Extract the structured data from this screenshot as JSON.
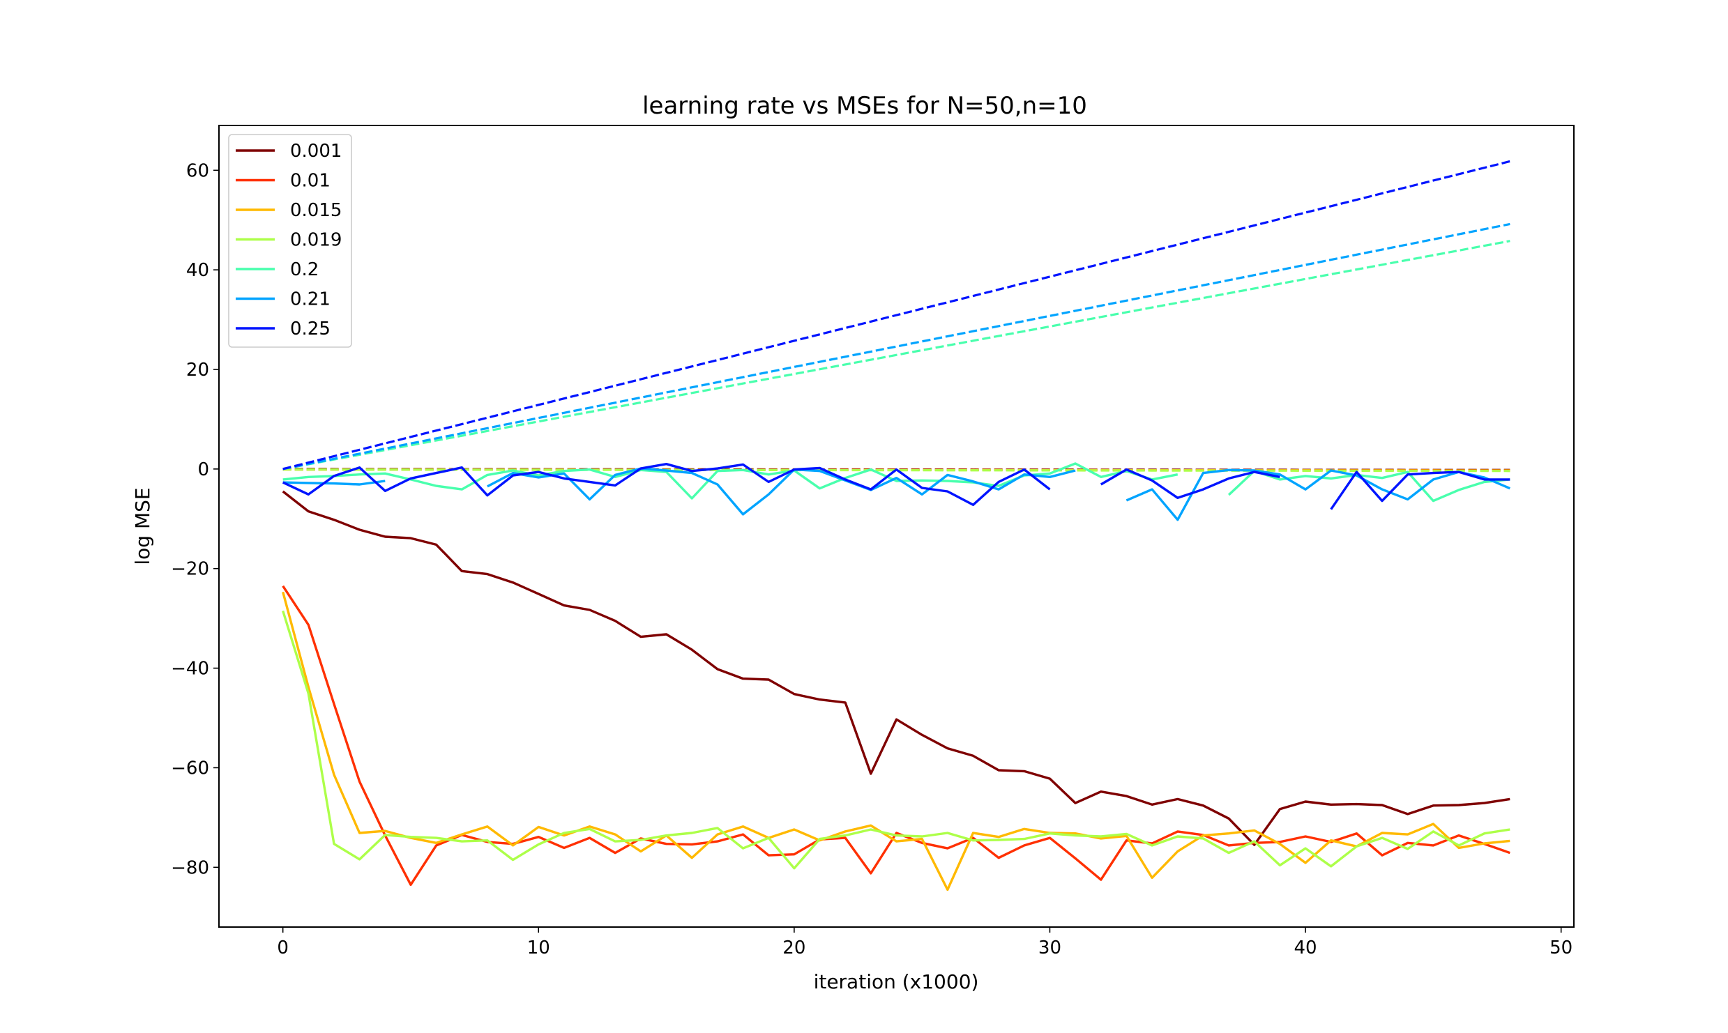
{
  "chart_data": {
    "type": "line",
    "title": "learning rate vs MSEs for N=50,n=10",
    "xlabel": "iteration (x1000)",
    "ylabel": "log MSE",
    "xlim": [
      -2.5,
      50.5
    ],
    "ylim": [
      -92,
      69
    ],
    "xticks": [
      0,
      10,
      20,
      30,
      40,
      50
    ],
    "yticks": [
      -80,
      -60,
      -40,
      -20,
      0,
      20,
      40,
      60
    ],
    "ytick_labels": [
      "−80",
      "−60",
      "−40",
      "−20",
      "0",
      "20",
      "40",
      "60"
    ],
    "grid": false,
    "legend_position": "top-left",
    "colors": {
      "0.001": "#7f0000",
      "0.01": "#ff3000",
      "0.015": "#ffb900",
      "0.019": "#adff49",
      "0.2": "#49ffad",
      "0.21": "#00a4ff",
      "0.25": "#0014ff"
    },
    "series": [
      {
        "name": "0.001",
        "style": "solid",
        "y": [
          -4.5,
          -8.5,
          -10.2,
          -12.2,
          -13.6,
          -13.9,
          -15.2,
          -20.5,
          -21.1,
          -22.8,
          -25.1,
          -27.4,
          -28.3,
          -30.5,
          -33.7,
          -33.2,
          -36.3,
          -40.2,
          -42.1,
          -42.3,
          -45.2,
          -46.3,
          -46.9,
          -61.2,
          -50.3,
          -53.4,
          -56.1,
          -57.6,
          -60.5,
          -60.7,
          -62.2,
          -67.1,
          -64.8,
          -65.7,
          -67.4,
          -66.3,
          -67.6,
          -70.2,
          -75.5,
          -68.3,
          -66.8,
          -67.4,
          -67.3,
          -67.5,
          -69.3,
          -67.6,
          -67.5,
          -67.1,
          -66.3
        ]
      },
      {
        "name": "0.01",
        "style": "solid",
        "y": [
          -23.5,
          -31.3,
          -47.2,
          -62.8,
          -73.6,
          -83.5,
          -75.6,
          -73.5,
          -74.9,
          -75.3,
          -73.9,
          -76.1,
          -74.1,
          -77.1,
          -74.2,
          -75.3,
          -75.4,
          -74.8,
          -73.4,
          -77.6,
          -77.4,
          -74.4,
          -74.1,
          -81.2,
          -73.1,
          -75.1,
          -76.2,
          -74.1,
          -78.1,
          -75.6,
          -74.1,
          -78.2,
          -82.5,
          -74.6,
          -75.2,
          -72.8,
          -73.5,
          -75.6,
          -75.1,
          -74.9,
          -73.8,
          -74.9,
          -73.2,
          -77.6,
          -75.1,
          -75.6,
          -73.6,
          -75.3,
          -77.1
        ]
      },
      {
        "name": "0.015",
        "style": "solid",
        "y": [
          -24.7,
          -43.8,
          -61.4,
          -73.1,
          -72.7,
          -74.1,
          -75.1,
          -73.4,
          -71.8,
          -75.6,
          -71.9,
          -73.6,
          -71.8,
          -73.4,
          -76.8,
          -73.6,
          -78.1,
          -73.4,
          -71.8,
          -74.1,
          -72.4,
          -74.6,
          -72.8,
          -71.6,
          -74.8,
          -74.3,
          -84.5,
          -73.1,
          -73.9,
          -72.3,
          -73.1,
          -73.2,
          -74.2,
          -73.7,
          -82.1,
          -76.8,
          -73.6,
          -73.2,
          -72.6,
          -75.3,
          -79.1,
          -74.6,
          -75.8,
          -73.1,
          -73.4,
          -71.3,
          -76.1,
          -75.2,
          -74.7
        ]
      },
      {
        "name": "0.019",
        "style": "solid",
        "y": [
          -28.5,
          -45.1,
          -75.3,
          -78.4,
          -73.5,
          -73.9,
          -74.1,
          -74.8,
          -74.6,
          -78.5,
          -75.4,
          -73.1,
          -72.3,
          -74.8,
          -74.5,
          -73.6,
          -73.1,
          -72.1,
          -76.2,
          -74.1,
          -80.2,
          -74.3,
          -73.6,
          -72.4,
          -73.6,
          -73.8,
          -73.1,
          -74.6,
          -74.5,
          -74.3,
          -73.2,
          -73.6,
          -73.8,
          -73.3,
          -75.6,
          -73.8,
          -74.2,
          -77.1,
          -74.8,
          -79.6,
          -76.2,
          -79.8,
          -75.8,
          -74.1,
          -76.3,
          -72.8,
          -75.6,
          -73.2,
          -72.4
        ]
      },
      {
        "name": "0.2",
        "style": "solid",
        "y": [
          -2.1,
          -1.6,
          -1.4,
          -1.1,
          -0.9,
          -2.1,
          -3.4,
          -4.1,
          -1.2,
          -0.3,
          -1.3,
          -0.4,
          -0.1,
          -1.6,
          -0.2,
          -0.6,
          -5.9,
          -0.4,
          -0.2,
          -1.1,
          -0.3,
          -3.9,
          -1.8,
          -0.1,
          -2.4,
          -2.3,
          -2.4,
          -2.7,
          -3.4,
          -1.3,
          -0.9,
          1.1,
          -1.6,
          -0.4,
          -2.1,
          -1.1,
          null,
          -5.2,
          -0.4,
          -2.1,
          -1.4,
          -1.9,
          -1.2,
          -1.8,
          -0.6,
          -6.4,
          -4.2,
          -2.6,
          -2.1
        ]
      },
      {
        "name": "0.21",
        "style": "solid",
        "y": [
          -2.7,
          -2.8,
          -2.9,
          -3.1,
          -2.4,
          null,
          null,
          null,
          -3.5,
          -0.8,
          -1.7,
          -0.9,
          -6.1,
          -1.2,
          0.1,
          -0.3,
          -0.8,
          -3.1,
          -9.1,
          -5.1,
          -0.1,
          -0.4,
          -2.3,
          -4.2,
          -1.8,
          -5.1,
          -1.2,
          -2.5,
          -4.1,
          -1.1,
          -1.6,
          -0.3,
          null,
          -6.3,
          -4.1,
          -10.2,
          -0.8,
          -0.2,
          -0.3,
          -1.1,
          -4.1,
          -0.3,
          -1.3,
          -4.1,
          -6.1,
          -2.1,
          -0.6,
          -1.7,
          -3.9
        ]
      },
      {
        "name": "0.25",
        "style": "solid",
        "y": [
          -2.7,
          -5.1,
          -1.4,
          0.3,
          -4.4,
          -1.9,
          -0.8,
          0.3,
          -5.3,
          -1.3,
          -0.6,
          -1.9,
          -2.6,
          -3.3,
          0.1,
          1.0,
          -0.4,
          0.1,
          0.9,
          -2.6,
          -0.1,
          0.2,
          -2.1,
          -4.1,
          -0.1,
          -3.8,
          -4.5,
          -7.2,
          -2.6,
          -0.1,
          -4.1,
          null,
          -3.1,
          -0.1,
          -2.3,
          -5.8,
          -4.1,
          -1.9,
          -0.6,
          -1.6,
          null,
          -8.1,
          -0.6,
          -6.4,
          -1.1,
          -0.8,
          -0.6,
          -2.1,
          -2.1
        ]
      },
      {
        "name": "0.001",
        "style": "dashed",
        "line": [
          0,
          0.0,
          48,
          -0.2
        ]
      },
      {
        "name": "0.01",
        "style": "dashed",
        "line": [
          0,
          -0.1,
          48,
          -0.3
        ]
      },
      {
        "name": "0.015",
        "style": "dashed",
        "line": [
          0,
          -0.1,
          48,
          -0.3
        ]
      },
      {
        "name": "0.019",
        "style": "dashed",
        "line": [
          0,
          -0.1,
          48,
          -0.4
        ]
      },
      {
        "name": "0.2",
        "style": "dashed",
        "line": [
          0,
          0.0,
          48,
          45.8
        ]
      },
      {
        "name": "0.21",
        "style": "dashed",
        "line": [
          0,
          0.0,
          48,
          49.2
        ]
      },
      {
        "name": "0.25",
        "style": "dashed",
        "line": [
          0,
          0.0,
          48,
          61.8
        ]
      }
    ]
  }
}
